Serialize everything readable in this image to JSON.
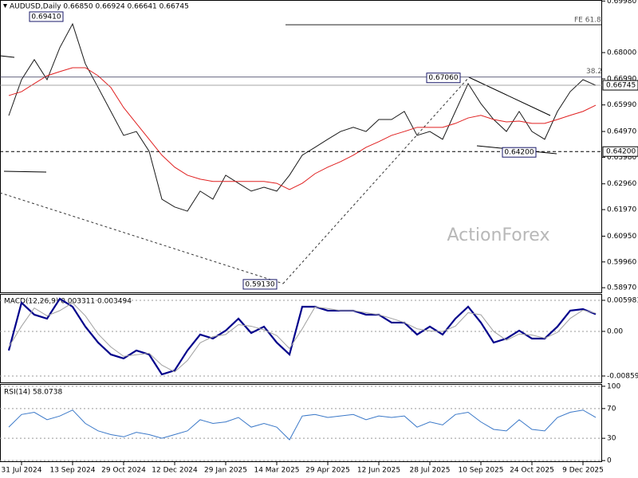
{
  "chart_data": [
    {
      "type": "line",
      "title": "AUDUSD,Daily 0.66850 0.66924 0.66641 0.66745",
      "categories": [
        null,
        "31 Jul 2024",
        null,
        null,
        null,
        "13 Sep 2024",
        null,
        null,
        null,
        "29 Oct 2024",
        null,
        null,
        null,
        "12 Dec 2024",
        null,
        null,
        null,
        "29 Jan 2025",
        null,
        null,
        null,
        "14 Mar 2025",
        null,
        null,
        null,
        "29 Apr 2025",
        null,
        null,
        null,
        "12 Jun 2025",
        null,
        null,
        null,
        "28 Jul 2025",
        null,
        null,
        null,
        "10 Sep 2025",
        null,
        null,
        null,
        "24 Oct 2025",
        null,
        null,
        null,
        "9 Dec 2025",
        null
      ],
      "series": [
        {
          "color": "#1a1a1a",
          "values": [
            0.6558,
            0.6696,
            0.6773,
            0.6696,
            0.6819,
            0.691,
            0.6757,
            0.6666,
            0.6574,
            0.6482,
            0.6497,
            0.6421,
            0.6237,
            0.6207,
            0.6191,
            0.6268,
            0.6237,
            0.6329,
            0.6298,
            0.6268,
            0.6283,
            0.6268,
            0.6329,
            0.6406,
            0.6436,
            0.6467,
            0.6497,
            0.6513,
            0.6497,
            0.6543,
            0.6543,
            0.6574,
            0.6482,
            0.6497,
            0.6467,
            0.6574,
            0.6681,
            0.6604,
            0.6543,
            0.6497,
            0.6574,
            0.6497,
            0.6467,
            0.6574,
            0.665,
            0.6696,
            0.66745
          ]
        },
        {
          "color": "#e02020",
          "values": [
            0.6635,
            0.665,
            0.6681,
            0.6711,
            0.6727,
            0.6742,
            0.6742,
            0.6711,
            0.6666,
            0.6589,
            0.6528,
            0.6467,
            0.6406,
            0.636,
            0.6329,
            0.6314,
            0.6305,
            0.6305,
            0.6305,
            0.6305,
            0.6305,
            0.6298,
            0.6274,
            0.6298,
            0.6335,
            0.636,
            0.6381,
            0.6406,
            0.6436,
            0.6458,
            0.6482,
            0.6497,
            0.6513,
            0.6513,
            0.6513,
            0.6528,
            0.6549,
            0.6559,
            0.6543,
            0.6534,
            0.6537,
            0.6528,
            0.6528,
            0.6543,
            0.6559,
            0.6574,
            0.6598
          ]
        }
      ],
      "ylim": [
        0.5876,
        0.7002
      ],
      "yticks": [
        {
          "value": 0.6998,
          "label": "0.69980"
        },
        {
          "value": 0.68,
          "label": "0.68000"
        },
        {
          "value": 0.6699,
          "label": "0.66990"
        },
        {
          "value": 0.6599,
          "label": "0.65990"
        },
        {
          "value": 0.6497,
          "label": "0.64970"
        },
        {
          "value": 0.6398,
          "label": "0.63980"
        },
        {
          "value": 0.6296,
          "label": "0.62960"
        },
        {
          "value": 0.6197,
          "label": "0.61970"
        },
        {
          "value": 0.6095,
          "label": "0.60950"
        },
        {
          "value": 0.5996,
          "label": "0.59960"
        },
        {
          "value": 0.5897,
          "label": "0.58970"
        }
      ],
      "annotations": [
        {
          "label": "0.69410",
          "value": 0.6941
        },
        {
          "label": "0.67060",
          "value": 0.6706
        },
        {
          "label": "0.64200",
          "value": 0.642
        },
        {
          "label": "0.59130",
          "value": 0.5913
        }
      ],
      "levels": [
        {
          "label": "FE 61.8",
          "value": 0.6907
        },
        {
          "label": "38.2",
          "value": 0.6706
        }
      ],
      "support": {
        "label": "0.64200",
        "value": 0.642
      },
      "current_price": {
        "label": "0.66745",
        "value": 0.66745
      },
      "watermark": "ActionForex"
    },
    {
      "type": "line",
      "title": "MACD(12,26,9) 0.003311 0.003494",
      "series": [
        {
          "color": "#00008b",
          "values": [
            -0.00368,
            0.00552,
            0.00322,
            0.00245,
            0.00629,
            0.00475,
            0.00092,
            -0.00215,
            -0.00445,
            -0.00521,
            -0.00368,
            -0.00445,
            -0.00828,
            -0.00752,
            -0.00368,
            -0.00061,
            -0.00138,
            0.00015,
            0.00245,
            -0.00031,
            0.00092,
            -0.00215,
            -0.00445,
            0.00475,
            0.00475,
            0.00399,
            0.00399,
            0.00399,
            0.00322,
            0.00322,
            0.00169,
            0.00169,
            -0.00061,
            0.00092,
            -0.00061,
            0.00245,
            0.00475,
            0.00169,
            -0.00215,
            -0.00138,
            0.00015,
            -0.00138,
            -0.00138,
            0.00092,
            0.00399,
            0.00429,
            0.003311
          ]
        },
        {
          "color": "#a0a0a0",
          "values": [
            -0.003,
            0.001,
            0.0045,
            0.003,
            0.004,
            0.0055,
            0.003,
            -0.0005,
            -0.003,
            -0.0048,
            -0.0045,
            -0.0042,
            -0.0065,
            -0.0078,
            -0.0056,
            -0.0022,
            -0.001,
            -0.0006,
            0.0013,
            0.001,
            0.0003,
            -0.0008,
            -0.0033,
            0.0005,
            0.0047,
            0.0044,
            0.004,
            0.004,
            0.0036,
            0.0032,
            0.0025,
            0.0017,
            0.0005,
            0.0001,
            0.0,
            0.001,
            0.0036,
            0.0032,
            0.0,
            -0.0017,
            -0.0005,
            -0.0007,
            -0.0013,
            -0.0002,
            0.0025,
            0.0041,
            0.003494
          ]
        }
      ],
      "ylim": [
        -0.00982,
        0.00705
      ],
      "yticks": [
        0.005981,
        {
          "value": 0,
          "label": "0.00"
        },
        -0.00859
      ]
    },
    {
      "type": "line",
      "title": "RSI(14) 58.0738",
      "series": [
        {
          "color": "#3a78c8",
          "values": [
            45,
            62,
            65,
            55,
            60,
            68,
            50,
            40,
            35,
            32,
            38,
            35,
            30,
            35,
            40,
            55,
            50,
            52,
            58,
            45,
            50,
            45,
            28,
            60,
            62,
            58,
            60,
            62,
            55,
            60,
            58,
            60,
            45,
            52,
            48,
            62,
            65,
            52,
            42,
            40,
            55,
            42,
            40,
            58,
            65,
            68,
            58.0738
          ]
        }
      ],
      "ylim": [
        -2,
        102
      ],
      "yticks": [
        100,
        70,
        30,
        0
      ]
    }
  ]
}
